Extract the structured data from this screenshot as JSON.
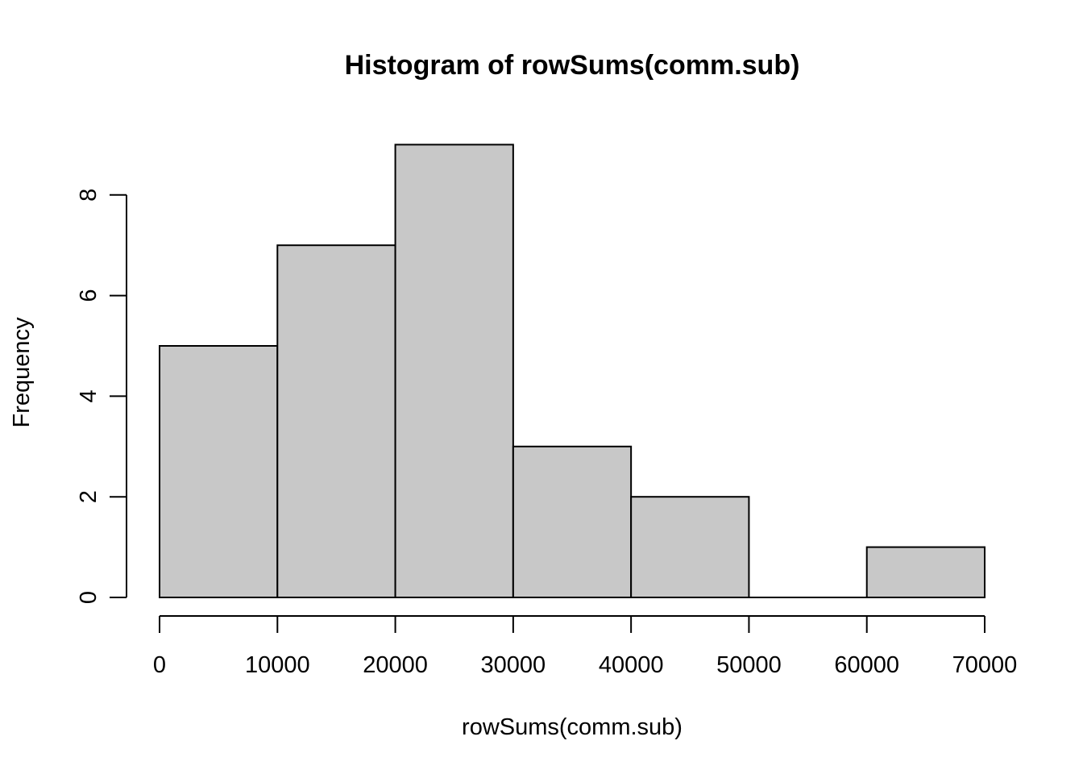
{
  "chart_data": {
    "type": "bar",
    "subtype": "histogram",
    "title": "Histogram of rowSums(comm.sub)",
    "xlabel": "rowSums(comm.sub)",
    "ylabel": "Frequency",
    "breaks": [
      0,
      10000,
      20000,
      30000,
      40000,
      50000,
      60000,
      70000
    ],
    "counts": [
      5,
      7,
      9,
      3,
      2,
      0,
      1
    ],
    "xlim": [
      0,
      70000
    ],
    "ylim": [
      0,
      9
    ],
    "x_ticks": [
      0,
      10000,
      20000,
      30000,
      40000,
      50000,
      60000,
      70000
    ],
    "x_tick_labels": [
      "0",
      "10000",
      "20000",
      "30000",
      "40000",
      "50000",
      "60000",
      "70000"
    ],
    "y_ticks": [
      0,
      2,
      4,
      6,
      8
    ],
    "y_tick_labels": [
      "0",
      "2",
      "4",
      "6",
      "8"
    ],
    "grid": false,
    "legend": "none",
    "colors": {
      "bar_fill": "#c8c8c8",
      "bar_stroke": "#000000",
      "axis": "#000000",
      "background": "#ffffff"
    }
  }
}
